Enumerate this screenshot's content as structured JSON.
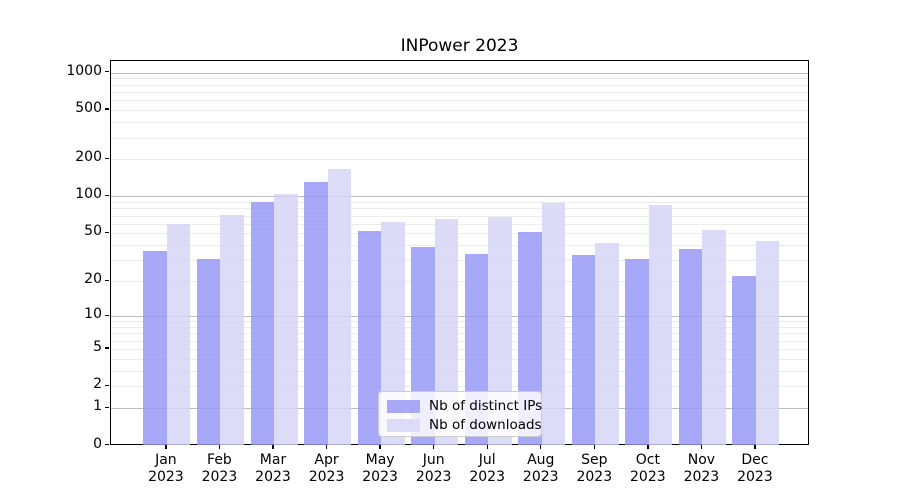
{
  "title": "INPower 2023",
  "colors": {
    "ips_bar": "#a8a8f8",
    "downloads_bar": "#dcdcf8",
    "grid_major": "#bdbdbd",
    "grid_minor": "#ececec",
    "axis": "#000000",
    "legend_border": "#cccccc"
  },
  "legend": {
    "items": [
      {
        "label": "Nb of distinct IPs",
        "swatch_color": "#a8a8f8"
      },
      {
        "label": "Nb of downloads",
        "swatch_color": "#dcdcf8"
      }
    ]
  },
  "chart_data": {
    "type": "bar",
    "title": "INPower 2023",
    "categories": [
      "Jan",
      "Feb",
      "Mar",
      "Apr",
      "May",
      "Jun",
      "Jul",
      "Aug",
      "Sep",
      "Oct",
      "Nov",
      "Dec"
    ],
    "year_label": "2023",
    "series": [
      {
        "name": "Nb of distinct IPs",
        "color": "#a8a8f8",
        "values": [
          36,
          31,
          90,
          130,
          52,
          39,
          34,
          51,
          33,
          31,
          37,
          22
        ]
      },
      {
        "name": "Nb of downloads",
        "color": "#dcdcf8",
        "values": [
          60,
          71,
          105,
          167,
          62,
          65,
          68,
          89,
          42,
          86,
          53,
          43
        ]
      }
    ],
    "xlabel": "",
    "ylabel": "",
    "yscale": "log1p",
    "yticks": [
      0,
      1,
      2,
      5,
      10,
      20,
      50,
      100,
      200,
      500,
      1000
    ],
    "ylim": [
      0,
      1000
    ],
    "grid": true,
    "legend_position": "lower center"
  }
}
